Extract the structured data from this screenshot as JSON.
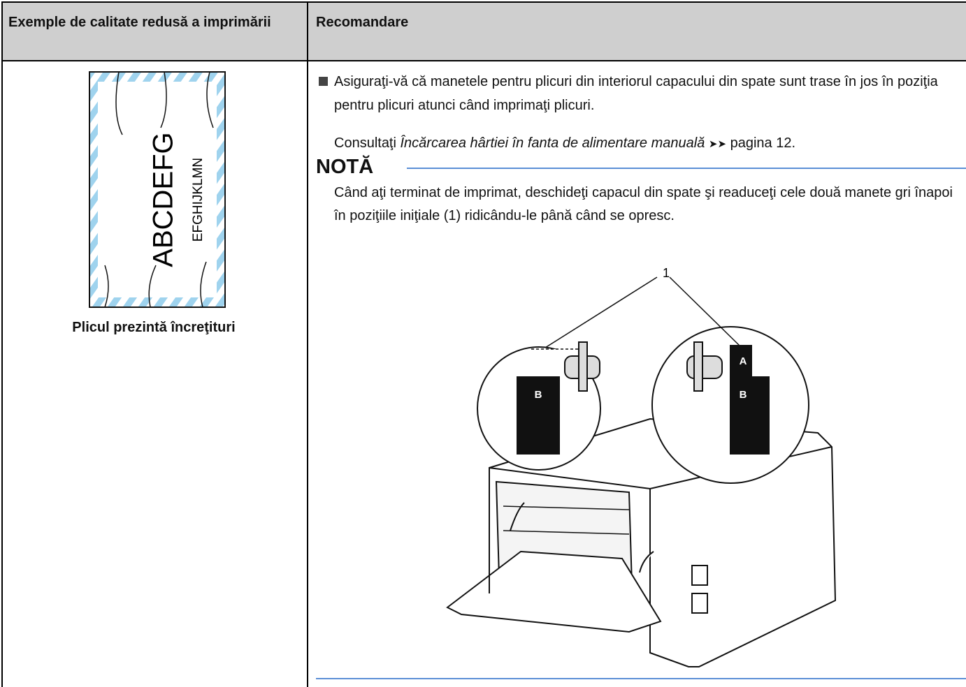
{
  "table": {
    "headers": [
      "Exemple de calitate redusă a imprimării",
      "Recomandare"
    ],
    "rows": [
      [
        {
          "illustration": {
            "labels": [
              "ABCDEFG",
              "EFGHIJKLMN"
            ]
          },
          "caption": "Plicul prezintă încreţituri"
        },
        {
          "bullet": "Asiguraţi-vă că manetele pentru plicuri din interiorul capacului din spate sunt trase în jos în poziţia pentru plicuri atunci când imprimaţi plicuri.",
          "reference": {
            "prefix": "Consultaţi",
            "link": "Încărcarea hârtiei în fanta de alimentare manuală",
            "arrows": "➤➤",
            "page": "pagina 12."
          },
          "note": {
            "title": "NOTĂ",
            "text": "Când aţi terminat de imprimat, deschideţi capacul din spate şi readuceţi cele două manete gri înapoi în poziţiile iniţiale (1) ridicându-le până când se opresc.",
            "figure": {
              "callout": "1",
              "labels": [
                "A",
                "B",
                "B"
              ]
            }
          }
        }
      ]
    ]
  }
}
